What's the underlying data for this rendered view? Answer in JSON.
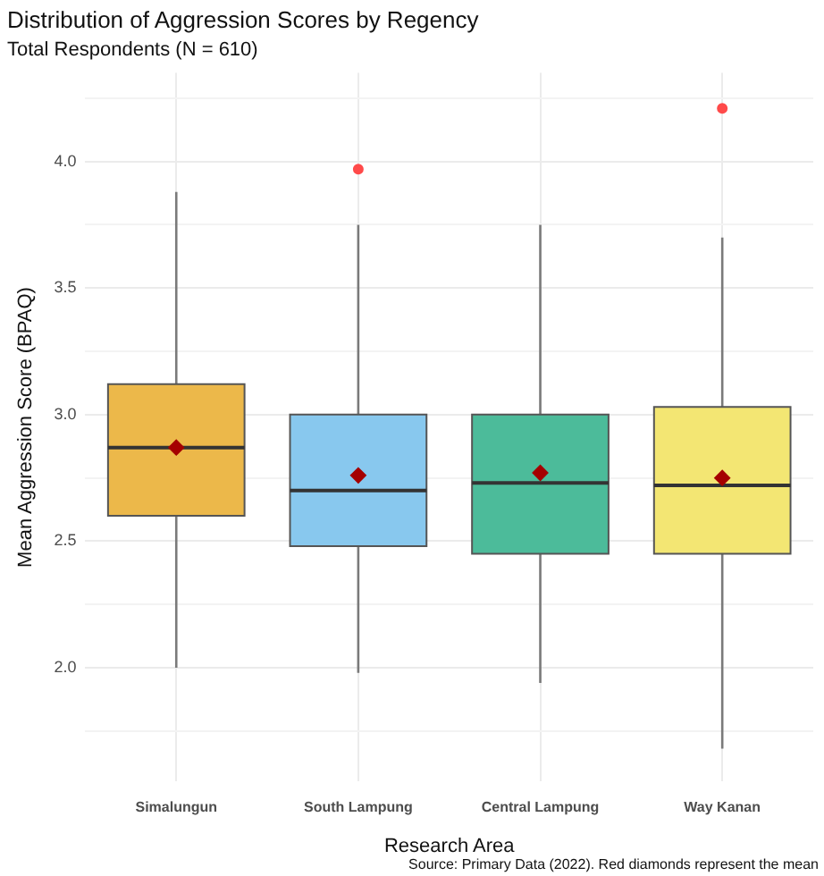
{
  "chart_data": {
    "type": "box",
    "title": "Distribution of Aggression Scores by Regency",
    "subtitle": "Total Respondents (N = 610)",
    "xlabel": "Research Area",
    "ylabel": "Mean Aggression Score (BPAQ)",
    "categories": [
      "Simalungun",
      "South Lampung",
      "Central Lampung",
      "Way Kanan"
    ],
    "colors": [
      "#ecb84a",
      "#88c8ee",
      "#4cbb9a",
      "#f3e673"
    ],
    "boxes": [
      {
        "low": 2.0,
        "q1": 2.6,
        "median": 2.87,
        "q3": 3.12,
        "high": 3.88,
        "mean": 2.87
      },
      {
        "low": 1.98,
        "q1": 2.48,
        "median": 2.7,
        "q3": 3.0,
        "high": 3.75,
        "mean": 2.76,
        "outliers": [
          3.97
        ]
      },
      {
        "low": 1.94,
        "q1": 2.45,
        "median": 2.73,
        "q3": 3.0,
        "high": 3.75,
        "mean": 2.77
      },
      {
        "low": 1.68,
        "q1": 2.45,
        "median": 2.72,
        "q3": 3.03,
        "high": 3.7,
        "mean": 2.75,
        "outliers": [
          4.21
        ]
      }
    ],
    "ylim": [
      1.55,
      4.35
    ],
    "yticks": [
      {
        "value": 1.75,
        "label": null
      },
      {
        "value": 2,
        "label": "2.0"
      },
      {
        "value": 2.25,
        "label": null
      },
      2.5,
      {
        "value": 2.75,
        "label": null
      },
      {
        "value": 3,
        "label": "3.0"
      },
      {
        "value": 3.25,
        "label": null
      },
      3.5,
      {
        "value": 3.75,
        "label": null
      },
      {
        "value": 4,
        "label": "4.0"
      },
      {
        "value": 4.25,
        "label": null
      }
    ],
    "grid": true,
    "legend": false,
    "annotations": [
      "Source: Primary Data (2022). Red diamonds represent the mean"
    ]
  }
}
